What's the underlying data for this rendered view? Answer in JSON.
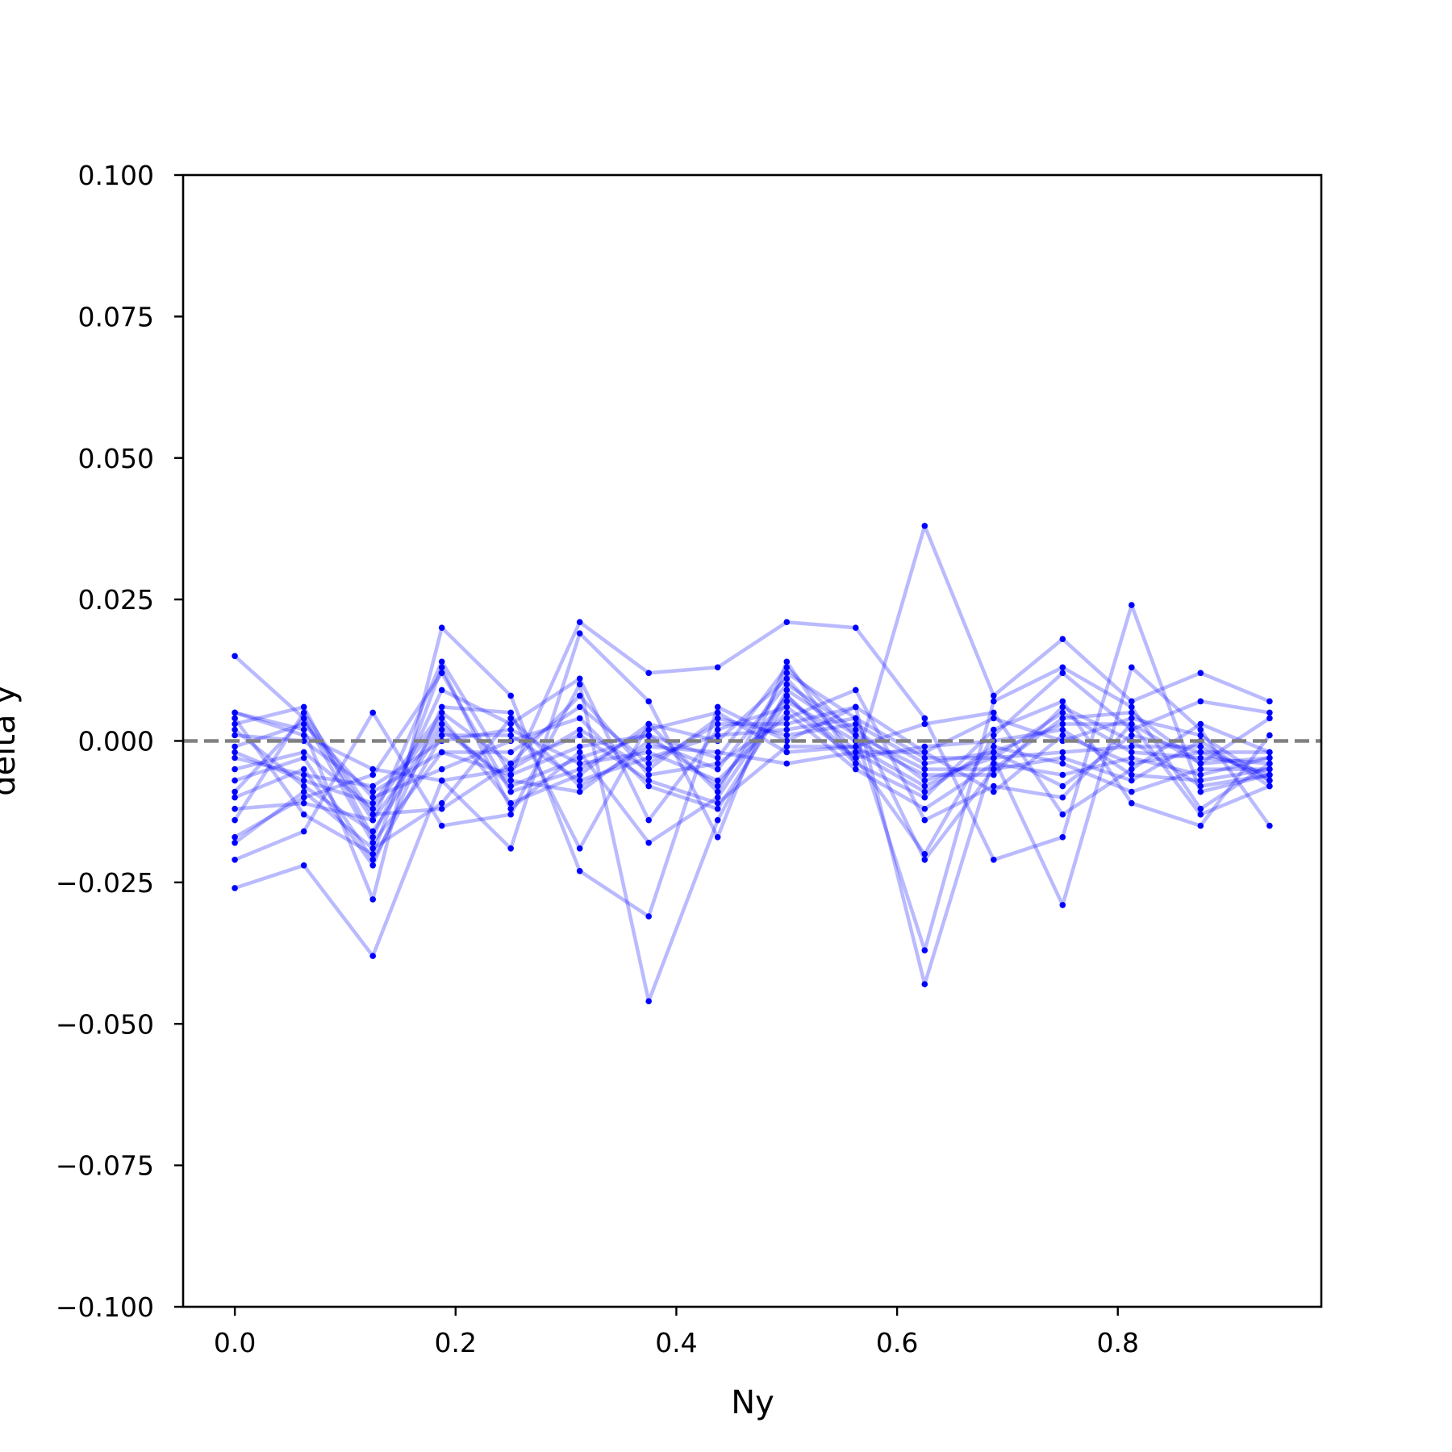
{
  "chart_data": {
    "type": "line",
    "xlabel": "Ny",
    "ylabel": "delta y",
    "xlim": [
      -0.046875,
      0.984375
    ],
    "ylim": [
      -0.1,
      0.1
    ],
    "x": [
      0.0,
      0.0625,
      0.125,
      0.1875,
      0.25,
      0.3125,
      0.375,
      0.4375,
      0.5,
      0.5625,
      0.625,
      0.6875,
      0.75,
      0.8125,
      0.875,
      0.9375
    ],
    "xticks": [
      {
        "value": 0.0,
        "label": "0.0"
      },
      {
        "value": 0.2,
        "label": "0.2"
      },
      {
        "value": 0.4,
        "label": "0.4"
      },
      {
        "value": 0.6,
        "label": "0.6"
      },
      {
        "value": 0.8,
        "label": "0.8"
      }
    ],
    "yticks": [
      {
        "value": 0.1,
        "label": "0.100"
      },
      {
        "value": 0.075,
        "label": "0.075"
      },
      {
        "value": 0.05,
        "label": "0.050"
      },
      {
        "value": 0.025,
        "label": "0.025"
      },
      {
        "value": 0.0,
        "label": "0.000"
      },
      {
        "value": -0.025,
        "label": "−0.025"
      },
      {
        "value": -0.05,
        "label": "−0.050"
      },
      {
        "value": -0.075,
        "label": "−0.075"
      },
      {
        "value": -0.1,
        "label": "−0.100"
      }
    ],
    "reference_line": {
      "y": 0.0,
      "style": "dashed",
      "color": "#808080"
    },
    "series_color": "#0000ff",
    "series": [
      {
        "values": [
          0.015,
          0.004,
          -0.014,
          0.014,
          -0.006,
          0.021,
          0.012,
          0.013,
          0.021,
          0.02,
          0.004,
          -0.021,
          -0.017,
          0.024,
          -0.009,
          -0.006
        ]
      },
      {
        "values": [
          -0.026,
          -0.022,
          -0.038,
          -0.007,
          -0.019,
          0.019,
          0.007,
          -0.017,
          0.014,
          -0.004,
          0.038,
          0.008,
          0.018,
          0.007,
          0.012,
          0.007
        ]
      },
      {
        "values": [
          0.005,
          0.002,
          -0.028,
          0.02,
          0.008,
          -0.023,
          -0.031,
          0.006,
          0.0,
          0.006,
          -0.043,
          -0.003,
          -0.029,
          0.013,
          0.002,
          -0.015
        ]
      },
      {
        "values": [
          -0.021,
          -0.016,
          0.005,
          -0.015,
          -0.013,
          0.01,
          -0.046,
          -0.014,
          0.009,
          0.001,
          -0.037,
          0.007,
          0.013,
          0.006,
          -0.012,
          -0.004
        ]
      },
      {
        "values": [
          0.003,
          0.006,
          -0.017,
          0.009,
          0.003,
          0.011,
          -0.014,
          0.002,
          0.006,
          -0.003,
          -0.02,
          0.001,
          0.012,
          0.002,
          0.007,
          0.005
        ]
      },
      {
        "values": [
          -0.01,
          -0.005,
          -0.022,
          0.006,
          0.005,
          -0.019,
          0.003,
          -0.009,
          0.012,
          0.004,
          -0.021,
          -0.005,
          0.004,
          0.005,
          -0.004,
          0.004
        ]
      },
      {
        "values": [
          0.004,
          -0.013,
          -0.02,
          0.013,
          -0.012,
          -0.002,
          -0.018,
          -0.01,
          0.008,
          -0.004,
          -0.01,
          0.002,
          0.007,
          -0.011,
          -0.015,
          0.001
        ]
      },
      {
        "values": [
          -0.014,
          0.005,
          -0.013,
          -0.012,
          -0.004,
          0.008,
          -0.006,
          -0.004,
          0.004,
          0.009,
          -0.014,
          -0.008,
          -0.01,
          0.003,
          -0.013,
          -0.008
        ]
      },
      {
        "values": [
          -0.017,
          -0.01,
          -0.006,
          0.012,
          -0.009,
          -0.005,
          0.002,
          0.005,
          -0.002,
          -0.001,
          0.003,
          0.005,
          -0.013,
          -0.005,
          0.003,
          -0.002
        ]
      },
      {
        "values": [
          -0.001,
          0.003,
          -0.01,
          -0.005,
          0.0,
          0.004,
          -0.008,
          -0.012,
          0.007,
          0.0,
          -0.006,
          -0.006,
          0.006,
          0.0,
          -0.008,
          -0.006
        ]
      },
      {
        "values": [
          0.002,
          -0.008,
          -0.016,
          0.002,
          -0.007,
          -0.009,
          0.0,
          -0.005,
          0.01,
          0.002,
          -0.007,
          -0.003,
          0.005,
          -0.002,
          -0.003,
          -0.004
        ]
      },
      {
        "values": [
          -0.005,
          -0.002,
          -0.012,
          0.004,
          -0.011,
          -0.006,
          0.003,
          0.0,
          0.011,
          -0.002,
          -0.009,
          -0.001,
          -0.004,
          -0.009,
          -0.005,
          -0.005
        ]
      },
      {
        "values": [
          -0.009,
          0.004,
          -0.018,
          -0.002,
          -0.002,
          0.006,
          -0.004,
          0.003,
          0.003,
          0.006,
          -0.002,
          0.004,
          0.0,
          0.004,
          0.001,
          -0.007
        ]
      },
      {
        "values": [
          -0.003,
          -0.006,
          -0.008,
          0.0,
          0.002,
          -0.004,
          -0.002,
          -0.007,
          0.005,
          -0.005,
          -0.012,
          -0.004,
          -0.006,
          -0.003,
          -0.006,
          -0.003
        ]
      },
      {
        "values": [
          0.005,
          0.001,
          -0.005,
          -0.007,
          -0.005,
          0.002,
          -0.005,
          0.004,
          0.001,
          0.003,
          -0.004,
          -0.002,
          -0.008,
          0.001,
          -0.002,
          -0.006
        ]
      },
      {
        "values": [
          -0.012,
          -0.011,
          -0.014,
          0.003,
          -0.008,
          -0.003,
          0.001,
          -0.008,
          0.008,
          -0.003,
          -0.001,
          0.0,
          0.002,
          -0.006,
          -0.007,
          -0.005
        ]
      },
      {
        "values": [
          -0.007,
          -0.003,
          -0.021,
          0.001,
          0.001,
          -0.007,
          -0.003,
          0.001,
          0.002,
          0.004,
          -0.003,
          -0.003,
          -0.002,
          -0.001,
          -0.001,
          -0.007
        ]
      },
      {
        "values": [
          -0.002,
          -0.007,
          -0.011,
          0.005,
          -0.004,
          0.001,
          -0.007,
          -0.011,
          -0.001,
          -0.001,
          -0.008,
          -0.002,
          0.003,
          0.003,
          -0.004,
          -0.003
        ]
      },
      {
        "values": [
          0.001,
          0.0,
          -0.009,
          -0.002,
          -0.006,
          -0.001,
          0.001,
          -0.003,
          0.013,
          0.001,
          -0.005,
          -0.005,
          -0.003,
          -0.007,
          0.0,
          -0.008
        ]
      },
      {
        "values": [
          -0.018,
          -0.009,
          -0.019,
          -0.011,
          0.004,
          -0.008,
          -0.001,
          -0.002,
          -0.004,
          -0.002,
          -0.002,
          -0.009,
          0.001,
          -0.004,
          -0.002,
          -0.002
        ]
      }
    ]
  }
}
